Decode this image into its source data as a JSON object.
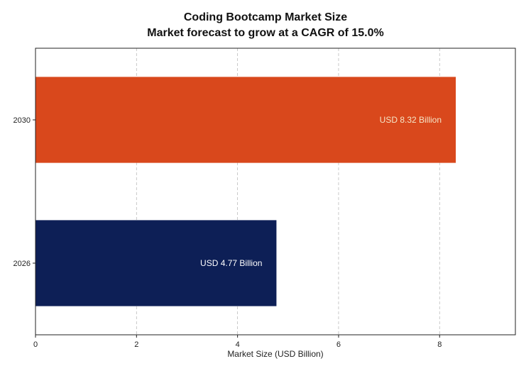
{
  "chart_data": {
    "type": "bar",
    "orientation": "horizontal",
    "title": "Coding Bootcamp Market Size",
    "subtitle": "Market forecast to grow at a CAGR of 15.0%",
    "xlabel": "Market Size (USD Billion)",
    "ylabel": "",
    "categories": [
      "2026",
      "2030"
    ],
    "values": [
      4.77,
      8.32
    ],
    "data_labels": [
      "USD 4.77 Billion",
      "USD 8.32 Billion"
    ],
    "bar_colors": [
      "#0d1f56",
      "#d9481c"
    ],
    "label_colors": [
      "#ffffff",
      "#f5e6c8"
    ],
    "xlim": [
      0,
      9.5
    ],
    "x_ticks": [
      0,
      2,
      4,
      6,
      8
    ],
    "x_tick_labels": [
      "0",
      "2",
      "4",
      "6",
      "8"
    ],
    "grid": "x-dashed"
  }
}
